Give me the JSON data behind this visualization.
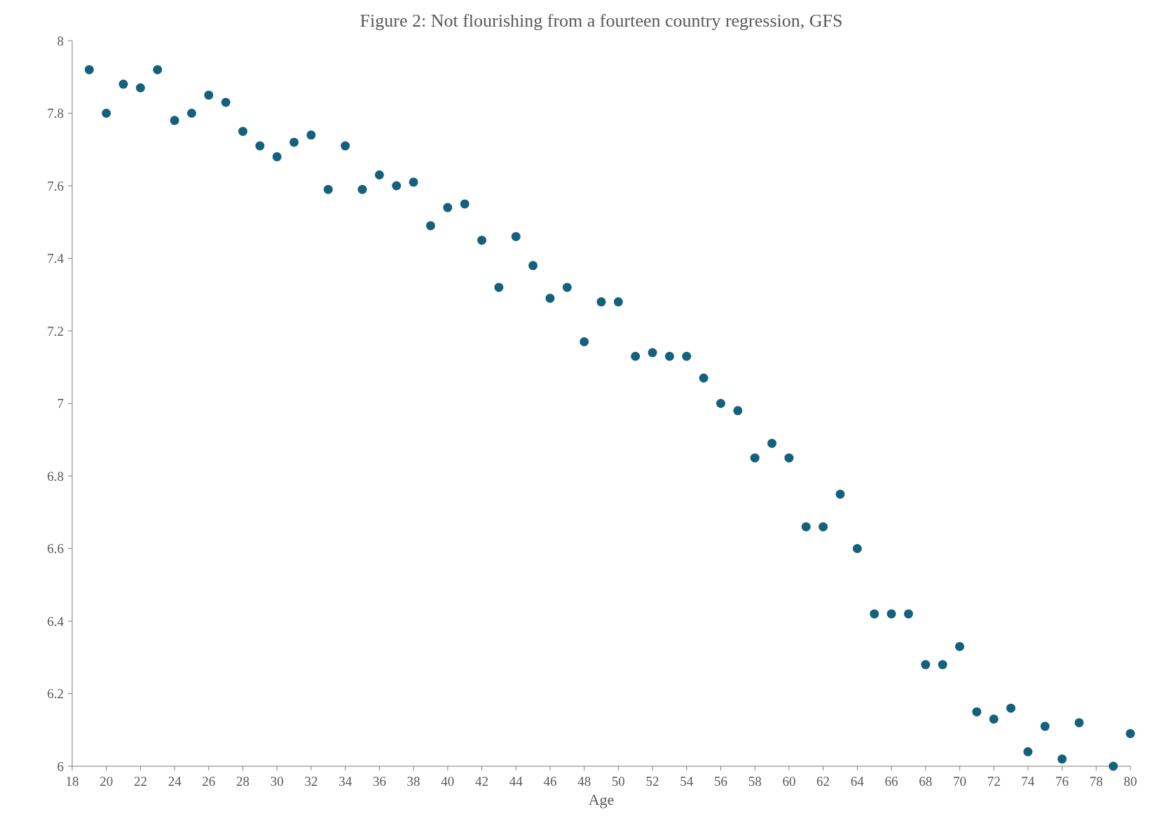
{
  "chart_data": {
    "type": "scatter",
    "title": "Figure 2:  Not flourishing from a fourteen country regression, GFS",
    "xlabel": "Age",
    "x": [
      19,
      20,
      21,
      22,
      23,
      24,
      25,
      26,
      27,
      28,
      29,
      30,
      31,
      32,
      33,
      34,
      35,
      36,
      37,
      38,
      39,
      40,
      41,
      42,
      43,
      44,
      45,
      46,
      47,
      48,
      49,
      50,
      51,
      52,
      53,
      54,
      55,
      56,
      57,
      58,
      59,
      60,
      61,
      62,
      63,
      64,
      65,
      66,
      67,
      68,
      69,
      70,
      71,
      72,
      73,
      74,
      75,
      76,
      77,
      79,
      80
    ],
    "values": [
      7.92,
      7.8,
      7.88,
      7.87,
      7.92,
      7.78,
      7.8,
      7.85,
      7.83,
      7.75,
      7.71,
      7.68,
      7.72,
      7.74,
      7.59,
      7.71,
      7.59,
      7.63,
      7.6,
      7.61,
      7.49,
      7.54,
      7.55,
      7.45,
      7.32,
      7.46,
      7.38,
      7.29,
      7.32,
      7.17,
      7.28,
      7.28,
      7.13,
      7.14,
      7.13,
      7.13,
      7.07,
      7.0,
      6.98,
      6.85,
      6.89,
      6.85,
      6.66,
      6.66,
      6.75,
      6.6,
      6.42,
      6.42,
      6.42,
      6.28,
      6.28,
      6.33,
      6.15,
      6.13,
      6.16,
      6.04,
      6.11,
      6.02,
      6.12,
      6.0,
      6.09
    ],
    "color": "#14607f",
    "marker": "circle",
    "grid": false,
    "xlim": [
      18,
      80
    ],
    "xticks": [
      18,
      20,
      22,
      24,
      26,
      28,
      30,
      32,
      34,
      36,
      38,
      40,
      42,
      44,
      46,
      48,
      50,
      52,
      54,
      56,
      58,
      60,
      62,
      64,
      66,
      68,
      70,
      72,
      74,
      76,
      78,
      80
    ],
    "ylim": [
      6,
      8
    ],
    "yticks": [
      6,
      6.2,
      6.4,
      6.6,
      6.8,
      7,
      7.2,
      7.4,
      7.6,
      7.8,
      8
    ]
  }
}
